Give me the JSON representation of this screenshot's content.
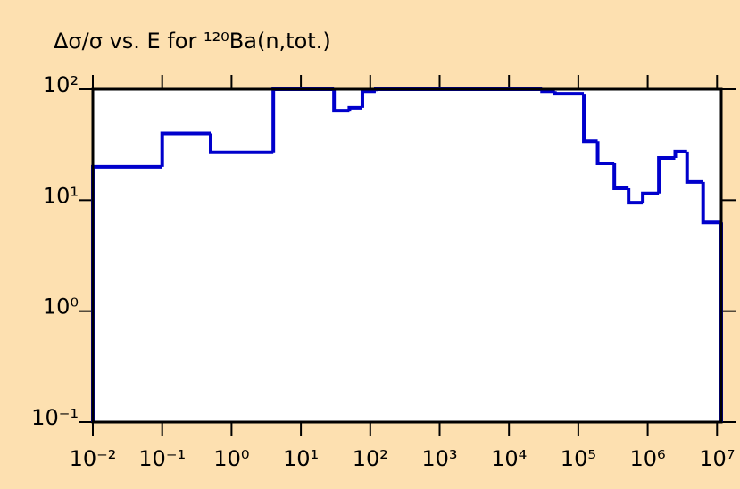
{
  "chart_data": {
    "type": "histogram",
    "title": "Δσ/σ vs. E for ¹²⁰Ba(n,tot.)",
    "bins": [
      0.01,
      0.1,
      0.5,
      4,
      30,
      50,
      77,
      120,
      30000,
      46000,
      120000,
      190000,
      330000,
      530000,
      850000,
      1450000,
      2500000,
      3700000,
      6300000,
      11500000
    ],
    "values": [
      20,
      40,
      27,
      100,
      64,
      68,
      96,
      100,
      96,
      91,
      34,
      21.5,
      12.8,
      9.5,
      11.5,
      24,
      27.4,
      14.6,
      6.3
    ],
    "color": "#0000cc",
    "xscale": "log",
    "yscale": "log",
    "xlim": [
      0.01,
      11500000
    ],
    "ylim": [
      0.1,
      100
    ],
    "xticks": [
      {
        "value": 0.01,
        "label": "10⁻²"
      },
      {
        "value": 0.1,
        "label": "10⁻¹"
      },
      {
        "value": 1,
        "label": "10⁰"
      },
      {
        "value": 10,
        "label": "10¹"
      },
      {
        "value": 100,
        "label": "10²"
      },
      {
        "value": 1000,
        "label": "10³"
      },
      {
        "value": 10000,
        "label": "10⁴"
      },
      {
        "value": 100000,
        "label": "10⁵"
      },
      {
        "value": 1000000,
        "label": "10⁶"
      },
      {
        "value": 10000000,
        "label": "10⁷"
      }
    ],
    "yticks": [
      {
        "value": 0.1,
        "label": "10⁻¹"
      },
      {
        "value": 1,
        "label": "10⁰"
      },
      {
        "value": 10,
        "label": "10¹"
      },
      {
        "value": 100,
        "label": "10²"
      }
    ],
    "grid": false
  }
}
